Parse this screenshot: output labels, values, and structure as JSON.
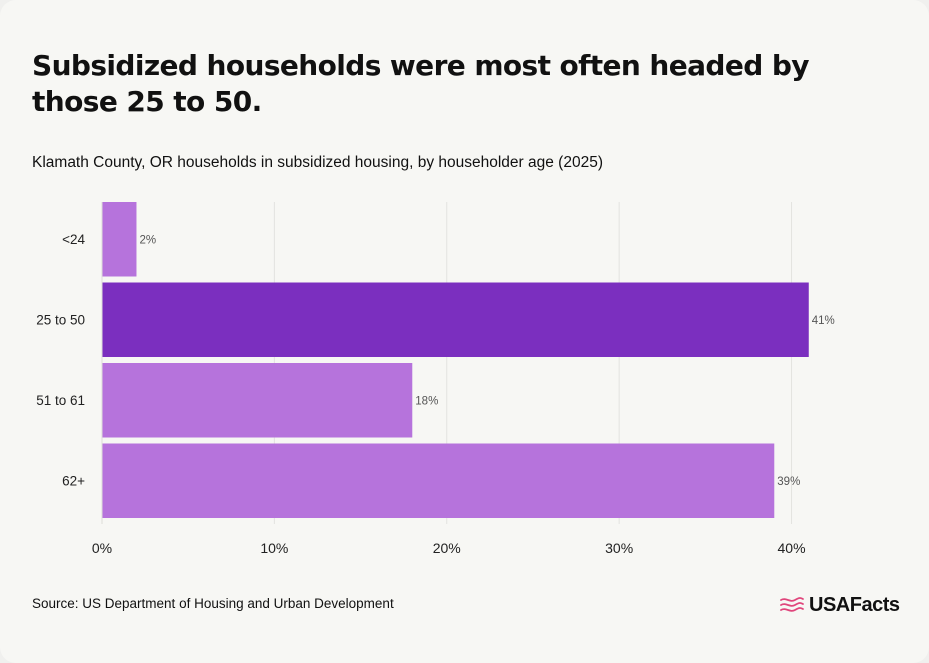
{
  "title": "Subsidized households were most often headed by those 25 to 50.",
  "subtitle": "Klamath County, OR households in subsidized housing, by householder age (2025)",
  "source": "Source: US Department of Housing and Urban Development",
  "brand": {
    "name": "USAFacts",
    "icon": "usafacts-flag-icon",
    "icon_color": "#e0467c"
  },
  "colors": {
    "highlight": "#7b2fbf",
    "bar": "#b673dc",
    "grid": "#e3e3e0"
  },
  "chart_data": {
    "type": "bar",
    "orientation": "horizontal",
    "categories": [
      "<24",
      "25 to 50",
      "51 to 61",
      "62+"
    ],
    "values": [
      2,
      41,
      18,
      39
    ],
    "data_labels": [
      "2%",
      "41%",
      "18%",
      "39%"
    ],
    "highlight_index": 1,
    "xlim": [
      0,
      42
    ],
    "xticks": [
      0,
      10,
      20,
      30,
      40
    ],
    "xtick_labels": [
      "0%",
      "10%",
      "20%",
      "30%",
      "40%"
    ],
    "grid": "vertical",
    "xlabel": "",
    "ylabel": ""
  }
}
